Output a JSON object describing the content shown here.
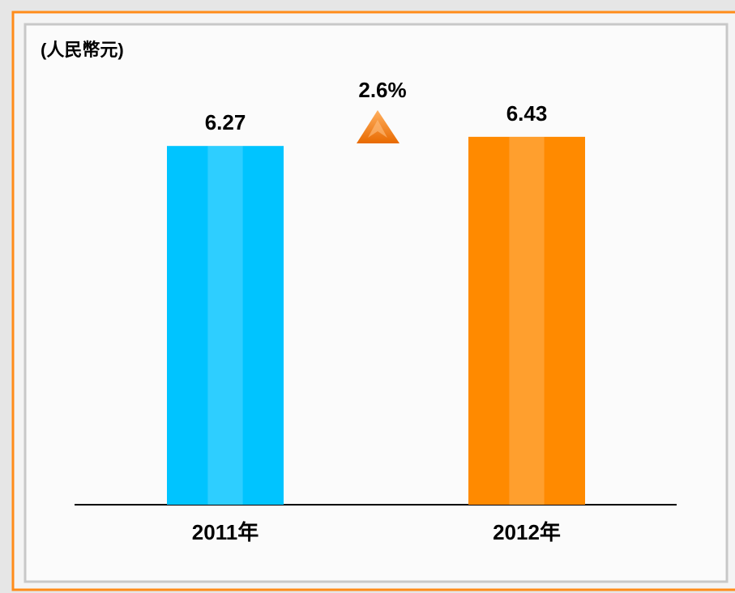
{
  "chart_data": {
    "type": "bar",
    "y_label": "(人民幣元)",
    "annotation": "2.6%",
    "categories": [
      "2011年",
      "2012年"
    ],
    "values": [
      6.27,
      6.43
    ],
    "colors": [
      "#00c4ff",
      "#ff8a00"
    ],
    "ylim": [
      0,
      8
    ]
  }
}
